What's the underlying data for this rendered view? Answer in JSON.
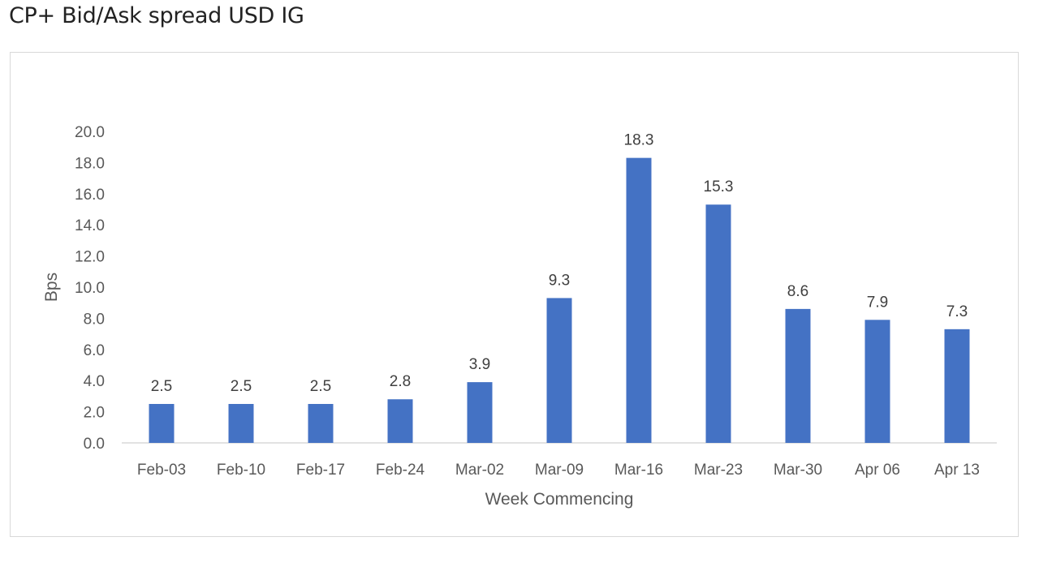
{
  "page": {
    "title": "CP+ Bid/Ask spread USD IG"
  },
  "chart_data": {
    "type": "bar",
    "title": "",
    "xlabel": "Week Commencing",
    "ylabel": "Bps",
    "categories": [
      "Feb-03",
      "Feb-10",
      "Feb-17",
      "Feb-24",
      "Mar-02",
      "Mar-09",
      "Mar-16",
      "Mar-23",
      "Mar-30",
      "Apr 06",
      "Apr 13"
    ],
    "values": [
      2.5,
      2.5,
      2.5,
      2.8,
      3.9,
      9.3,
      18.3,
      15.3,
      8.6,
      7.9,
      7.3
    ],
    "data_labels": [
      "2.5",
      "2.5",
      "2.5",
      "2.8",
      "3.9",
      "9.3",
      "18.3",
      "15.3",
      "8.6",
      "7.9",
      "7.3"
    ],
    "ylim": [
      0,
      20
    ],
    "yticks": [
      "0.0",
      "2.0",
      "4.0",
      "6.0",
      "8.0",
      "10.0",
      "12.0",
      "14.0",
      "16.0",
      "18.0",
      "20.0"
    ],
    "grid": false,
    "legend": "none",
    "bar_color": "#4472c4"
  }
}
